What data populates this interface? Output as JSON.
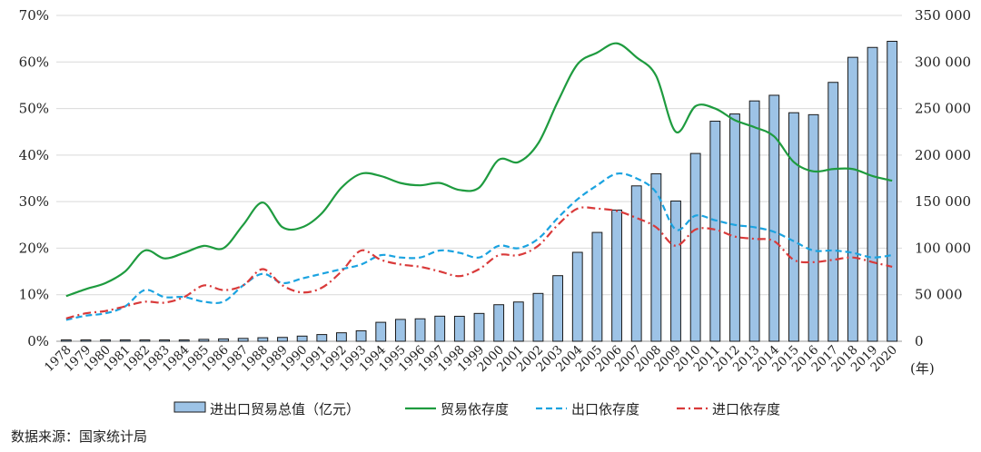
{
  "chart_data": {
    "type": "bar+line",
    "categories": [
      "1978",
      "1979",
      "1980",
      "1981",
      "1982",
      "1983",
      "1984",
      "1985",
      "1986",
      "1987",
      "1988",
      "1989",
      "1990",
      "1991",
      "1992",
      "1993",
      "1994",
      "1995",
      "1996",
      "1997",
      "1998",
      "1999",
      "2000",
      "2001",
      "2002",
      "2003",
      "2004",
      "2005",
      "2006",
      "2007",
      "2008",
      "2009",
      "2010",
      "2011",
      "2012",
      "2013",
      "2014",
      "2015",
      "2016",
      "2017",
      "2018",
      "2019",
      "2020"
    ],
    "x_unit_label": "(年)",
    "left_axis": {
      "ylim": [
        0,
        70
      ],
      "ticks": [
        "0%",
        "10%",
        "20%",
        "30%",
        "40%",
        "50%",
        "60%",
        "70%"
      ]
    },
    "right_axis": {
      "ylim": [
        0,
        350000
      ],
      "ticks": [
        "0",
        "50 000",
        "100 000",
        "150 000",
        "200 000",
        "250 000",
        "300 000",
        "350 000"
      ]
    },
    "series": [
      {
        "name": "进出口贸易总值（亿元）",
        "type": "bar",
        "axis": "right",
        "color": "#9dc3e6",
        "values": [
          355,
          455,
          570,
          735,
          771,
          860,
          1201,
          2067,
          2580,
          3084,
          3822,
          4156,
          5560,
          7226,
          9120,
          11271,
          20382,
          23500,
          24134,
          26967,
          26850,
          29896,
          39273,
          42184,
          51378,
          70484,
          95539,
          116922,
          140975,
          166924,
          179922,
          150648,
          201722,
          236402,
          244160,
          258169,
          264242,
          245503,
          243386,
          278099,
          305010,
          315627,
          322215
        ]
      },
      {
        "name": "贸易依存度",
        "type": "line",
        "axis": "left",
        "color": "#1e9b3f",
        "dash": "solid",
        "values": [
          9.7,
          11.2,
          12.5,
          15,
          19.5,
          17.8,
          19,
          20.5,
          20,
          25,
          29.8,
          24.5,
          24.5,
          27.5,
          33,
          36,
          35.5,
          34,
          33.5,
          34,
          32.5,
          33,
          39,
          38.5,
          42.5,
          51.5,
          59.5,
          62,
          64,
          61,
          57,
          45,
          50.5,
          50,
          47.5,
          46,
          44,
          38.5,
          36.5,
          37,
          37,
          35.5,
          34.5
        ]
      },
      {
        "name": "出口依存度",
        "type": "line",
        "axis": "left",
        "color": "#1ba3e0",
        "dash": "dash",
        "values": [
          4.6,
          5.5,
          6,
          7.5,
          11,
          9.5,
          9.5,
          8.5,
          8.5,
          12,
          14.5,
          12.5,
          13.5,
          14.5,
          15.5,
          16.5,
          18.5,
          18,
          18,
          19.5,
          19,
          18,
          20.5,
          20,
          22,
          26.5,
          30.5,
          33.5,
          36,
          35,
          32,
          24,
          27,
          26,
          25,
          24.5,
          23.5,
          21.5,
          19.5,
          19.5,
          19,
          18,
          18.5
        ]
      },
      {
        "name": "进口依存度",
        "type": "line",
        "axis": "left",
        "color": "#d93a3a",
        "dash": "dashdot",
        "values": [
          4.9,
          6,
          6.5,
          7.5,
          8.5,
          8.3,
          9.5,
          12,
          11,
          12,
          15.5,
          12,
          10.5,
          11.5,
          15,
          19.5,
          17.5,
          16.5,
          16,
          15,
          14,
          15.5,
          18.5,
          18.5,
          20.5,
          25,
          28.5,
          28.5,
          28,
          26.5,
          24.5,
          20.5,
          24,
          24,
          22.5,
          22,
          21.5,
          17.5,
          17,
          17.5,
          18,
          17,
          16
        ]
      }
    ],
    "legend_position": "bottom",
    "grid": "horizontal"
  },
  "source": {
    "label": "数据来源：国家统计局"
  }
}
